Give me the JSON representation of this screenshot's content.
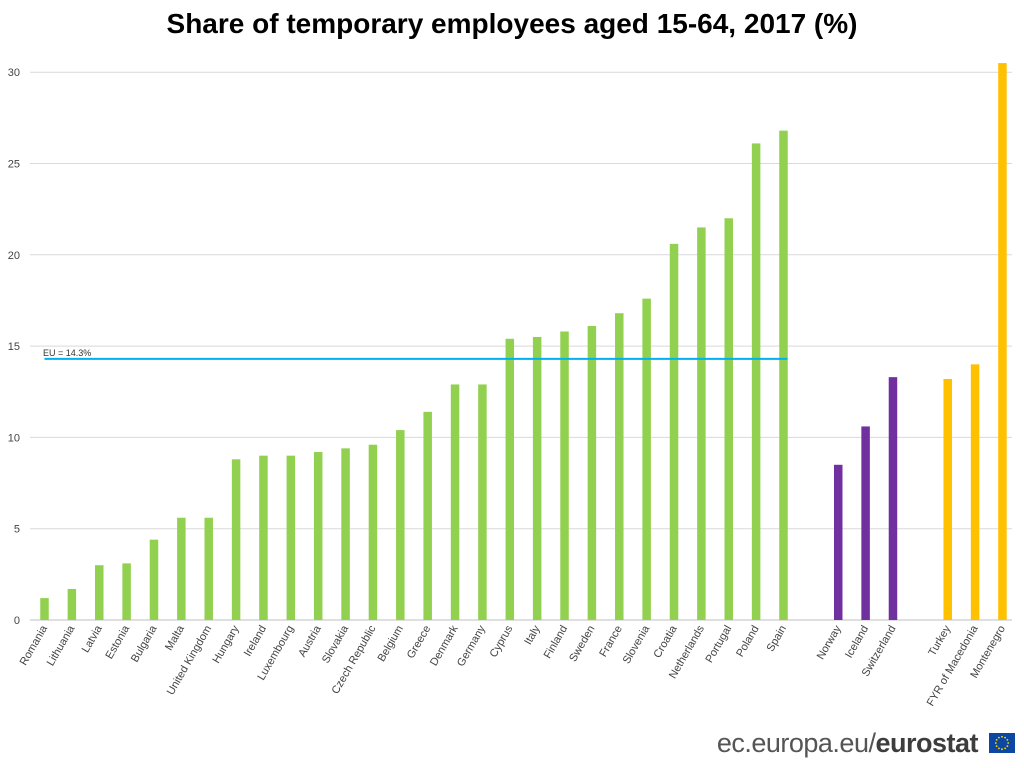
{
  "chart_data": {
    "type": "bar",
    "title": "Share of temporary employees aged 15-64, 2017 (%)",
    "xlabel": "",
    "ylabel": "",
    "ylim": [
      0,
      31
    ],
    "yticks": [
      0,
      5,
      10,
      15,
      20,
      25,
      30
    ],
    "grid": true,
    "legend": "none",
    "groups": [
      {
        "color": "#92d050",
        "categories": [
          "Romania",
          "Lithuania",
          "Latvia",
          "Estonia",
          "Bulgaria",
          "Malta",
          "United Kingdom",
          "Hungary",
          "Ireland",
          "Luxembourg",
          "Austria",
          "Slovakia",
          "Czech Republic",
          "Belgium",
          "Greece",
          "Denmark",
          "Germany",
          "Cyprus",
          "Italy",
          "Finland",
          "Sweden",
          "France",
          "Slovenia",
          "Croatia",
          "Netherlands",
          "Portugal",
          "Poland",
          "Spain"
        ],
        "values": [
          1.2,
          1.7,
          3.0,
          3.1,
          4.4,
          5.6,
          5.6,
          8.8,
          9.0,
          9.0,
          9.2,
          9.4,
          9.6,
          10.4,
          11.4,
          12.9,
          12.9,
          15.4,
          15.5,
          15.8,
          16.1,
          16.8,
          17.6,
          20.6,
          21.5,
          22.0,
          26.1,
          26.8
        ]
      },
      {
        "color": "#7030a0",
        "categories": [
          "Norway",
          "Iceland",
          "Switzerland"
        ],
        "values": [
          8.5,
          10.6,
          13.3
        ]
      },
      {
        "color": "#ffc000",
        "categories": [
          "Turkey",
          "FYR of Macedonia",
          "Montenegro"
        ],
        "values": [
          13.2,
          14.0,
          30.5
        ]
      }
    ],
    "reference_line": {
      "label": "EU = 14.3%",
      "value": 14.3,
      "color": "#00b0f0"
    }
  },
  "source": {
    "prefix": "ec.europa.eu/",
    "brand": "eurostat"
  }
}
